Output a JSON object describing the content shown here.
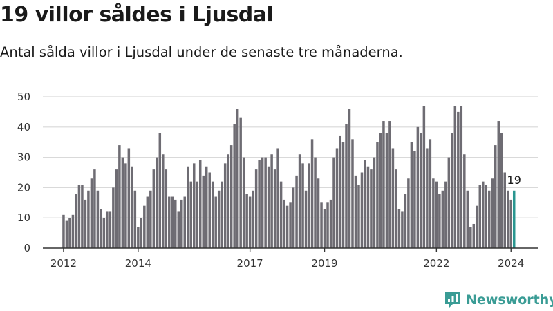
{
  "title": "19 villor såldes i Ljusdal",
  "subtitle": "Antal sålda villor i Ljusdal under de senaste tre månaderna.",
  "brand": {
    "name": "Newsworthy",
    "color": "#3a9c95"
  },
  "colors": {
    "bar": "#6e6c73",
    "highlight": "#2a9690",
    "grid": "#d9d9d9",
    "axis": "#333333"
  },
  "chart_data": {
    "type": "bar",
    "title": "19 villor såldes i Ljusdal",
    "ylim": [
      0,
      50
    ],
    "yticks": [
      0,
      10,
      20,
      30,
      40,
      50
    ],
    "xtick_labels": [
      "2012",
      "2014",
      "2017",
      "2019",
      "2022",
      "2024"
    ],
    "grid": true,
    "highlight_label": "19",
    "series": [
      {
        "values": [
          11,
          9,
          10,
          11,
          18,
          21,
          21,
          16,
          19,
          23,
          26,
          19,
          13,
          10,
          12,
          12,
          20,
          26,
          34,
          30,
          28,
          33,
          27,
          19,
          7,
          10,
          14,
          17,
          19,
          26,
          30,
          38,
          31,
          26,
          17,
          17,
          16,
          12,
          16,
          17,
          27,
          22,
          28,
          22,
          29,
          24,
          27,
          25,
          22,
          17,
          19,
          22,
          28,
          31,
          34,
          41,
          46,
          43,
          30,
          18,
          17,
          19,
          26,
          29,
          30,
          30,
          27,
          31,
          26,
          33,
          22,
          16,
          14,
          15,
          20,
          24,
          31,
          28,
          19,
          28,
          36,
          30,
          23,
          15,
          13,
          15,
          16,
          30,
          33,
          37,
          35,
          41,
          46,
          36,
          24,
          21,
          25,
          29,
          27,
          26,
          30,
          35,
          38,
          42,
          38,
          42,
          33,
          26,
          13,
          12,
          18,
          23,
          35,
          32,
          40,
          38,
          47,
          33,
          36,
          23,
          22,
          18,
          19,
          22,
          30,
          38,
          47,
          45,
          47,
          31,
          19,
          7,
          8,
          14,
          21,
          22,
          21,
          19,
          23,
          34,
          42,
          38,
          25,
          19,
          16,
          19
        ]
      }
    ]
  }
}
